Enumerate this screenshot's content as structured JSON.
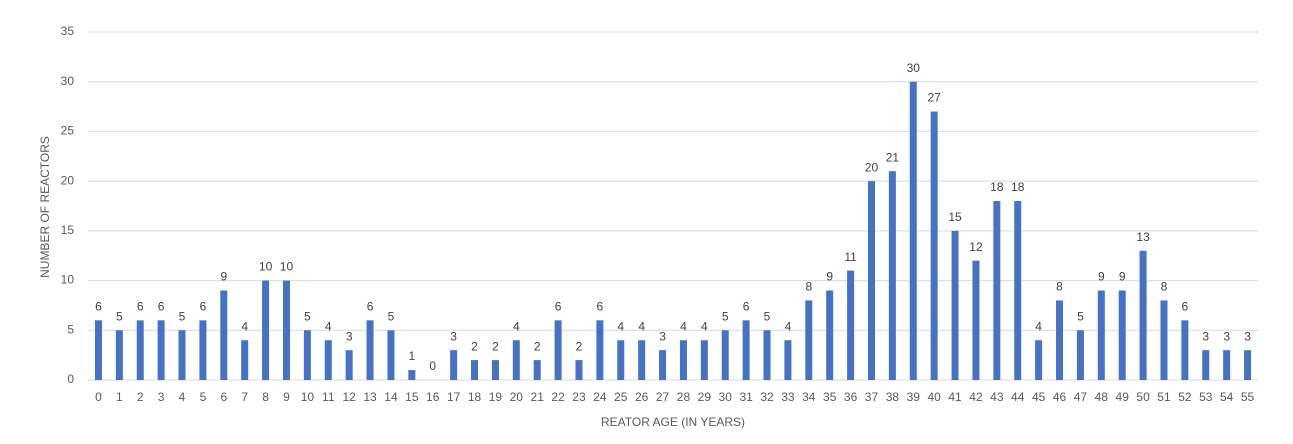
{
  "chart_data": {
    "type": "bar",
    "x_label": "REATOR AGE (IN YEARS)",
    "y_label": "NUMBER OF REACTORS",
    "categories": [
      "0",
      "1",
      "2",
      "3",
      "4",
      "5",
      "6",
      "7",
      "8",
      "9",
      "10",
      "11",
      "12",
      "13",
      "14",
      "15",
      "16",
      "17",
      "18",
      "19",
      "20",
      "21",
      "22",
      "23",
      "24",
      "25",
      "26",
      "27",
      "28",
      "29",
      "30",
      "31",
      "32",
      "33",
      "34",
      "35",
      "36",
      "37",
      "38",
      "39",
      "40",
      "41",
      "42",
      "43",
      "44",
      "45",
      "46",
      "47",
      "48",
      "49",
      "50",
      "51",
      "52",
      "53",
      "54",
      "55"
    ],
    "values": [
      6,
      5,
      6,
      6,
      5,
      6,
      9,
      4,
      10,
      10,
      5,
      4,
      3,
      6,
      5,
      1,
      0,
      3,
      2,
      2,
      4,
      2,
      6,
      2,
      6,
      4,
      4,
      3,
      4,
      4,
      5,
      6,
      5,
      4,
      8,
      9,
      11,
      20,
      21,
      30,
      27,
      15,
      12,
      18,
      18,
      4,
      8,
      5,
      9,
      9,
      13,
      8,
      6,
      3,
      3,
      3
    ],
    "color": "#4472c4",
    "ylim": [
      0,
      35
    ],
    "yticks": [
      0,
      5,
      10,
      15,
      20,
      25,
      30,
      35
    ],
    "grid": true
  }
}
